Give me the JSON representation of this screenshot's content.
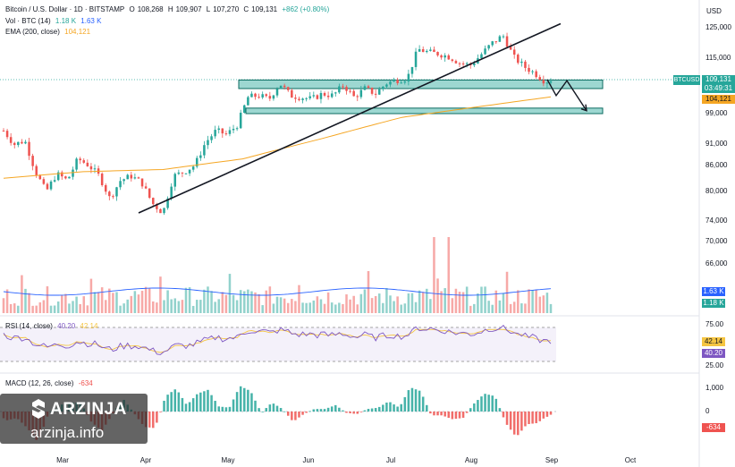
{
  "header": {
    "symbol": "Bitcoin / U.S. Dollar · 1D · BITSTAMP",
    "o_label": "O",
    "o_value": "108,268",
    "h_label": "H",
    "h_value": "109,907",
    "l_label": "L",
    "l_value": "107,270",
    "c_label": "C",
    "c_value": "109,131",
    "change": "+862 (+0.80%)",
    "vol_label": "Vol · BTC (14)",
    "vol_v1": "1.18 K",
    "vol_v2": "1.63 K",
    "ema_label": "EMA (200, close)",
    "ema_value": "104,121",
    "currency": "USD"
  },
  "price_badges": {
    "symbol": "BTCUSD",
    "price": "109,131",
    "countdown": "03:49:31",
    "ema": "104,121"
  },
  "volume_badges": {
    "v1": "1.63 K",
    "v2": "1.18 K"
  },
  "rsi_panel": {
    "label": "RSI (14, close)",
    "v1": "40.20",
    "v2": "42.14",
    "upper": "75.00",
    "lower": "25.00"
  },
  "macd_panel": {
    "label": "MACD (12, 26, close)",
    "v1": "-634",
    "tick_top": "1,000",
    "tick_mid": "0",
    "tick_bot": "-634"
  },
  "brand": {
    "name": "ARZINJA",
    "url": "arzinja.info"
  },
  "colors": {
    "up": "#26a69a",
    "down": "#ef5350",
    "ema": "#f5a623",
    "rsi": "#7e57c2",
    "rsi_signal": "#f5c542",
    "zone": "#26a69a"
  },
  "chart_data": {
    "type": "candlestick",
    "title": "Bitcoin / U.S. Dollar · 1D · BITSTAMP",
    "x_months": [
      "Mar",
      "Apr",
      "May",
      "Jun",
      "Jul",
      "Aug",
      "Sep",
      "Oct"
    ],
    "y_ticks": [
      "125,000",
      "115,000",
      "109,131",
      "99,000",
      "91,000",
      "86,000",
      "80,000",
      "74,000",
      "70,000",
      "66,000"
    ],
    "y_scale": "log",
    "ylim": [
      64000,
      127000
    ],
    "ohlc_close_path": [
      [
        0,
        95000
      ],
      [
        8,
        91500
      ],
      [
        16,
        92500
      ],
      [
        24,
        85000
      ],
      [
        32,
        80500
      ],
      [
        40,
        84500
      ],
      [
        48,
        83000
      ],
      [
        56,
        88000
      ],
      [
        64,
        86500
      ],
      [
        72,
        84000
      ],
      [
        80,
        79000
      ],
      [
        88,
        83000
      ],
      [
        96,
        84000
      ],
      [
        104,
        82500
      ],
      [
        112,
        78000
      ],
      [
        120,
        76000
      ],
      [
        128,
        84000
      ],
      [
        136,
        85000
      ],
      [
        144,
        86500
      ],
      [
        152,
        92000
      ],
      [
        160,
        95000
      ],
      [
        168,
        94000
      ],
      [
        176,
        96500
      ],
      [
        184,
        104000
      ],
      [
        192,
        104500
      ],
      [
        200,
        103500
      ],
      [
        208,
        108000
      ],
      [
        216,
        104500
      ],
      [
        224,
        104000
      ],
      [
        232,
        103500
      ],
      [
        240,
        105000
      ],
      [
        248,
        104500
      ],
      [
        256,
        107500
      ],
      [
        264,
        104000
      ],
      [
        272,
        106500
      ],
      [
        280,
        105000
      ],
      [
        288,
        108000
      ],
      [
        296,
        109000
      ],
      [
        304,
        109500
      ],
      [
        312,
        118500
      ],
      [
        320,
        117500
      ],
      [
        328,
        117000
      ],
      [
        336,
        116000
      ],
      [
        344,
        114000
      ],
      [
        352,
        113500
      ],
      [
        360,
        117000
      ],
      [
        368,
        120500
      ],
      [
        376,
        123000
      ],
      [
        384,
        116000
      ],
      [
        392,
        113000
      ],
      [
        400,
        111000
      ],
      [
        408,
        108500
      ],
      [
        412,
        109131
      ]
    ],
    "ema200_path": [
      [
        0,
        83500
      ],
      [
        60,
        85000
      ],
      [
        120,
        85500
      ],
      [
        180,
        88000
      ],
      [
        240,
        93000
      ],
      [
        300,
        98500
      ],
      [
        360,
        101500
      ],
      [
        412,
        104121
      ]
    ],
    "last_price": 109131,
    "ema200_last": 104121,
    "resistance_zone": [
      106500,
      109000
    ],
    "support_zone": [
      99500,
      101000
    ],
    "trendline": [
      [
        76000,
        "Apr"
      ],
      [
        125000,
        "Aug"
      ]
    ],
    "projection": [
      109131,
      104500,
      108800,
      100300
    ]
  }
}
